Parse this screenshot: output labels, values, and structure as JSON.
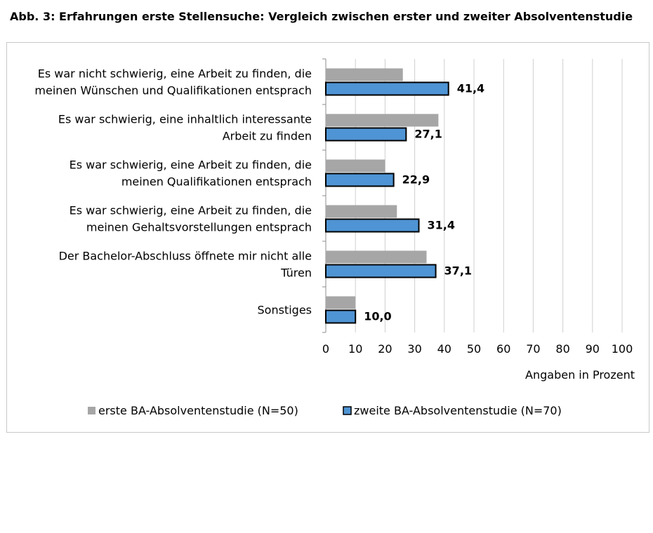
{
  "title": "Abb. 3: Erfahrungen erste Stellensuche: Vergleich zwischen erster und zweiter Absolventenstudie",
  "chart_data": {
    "type": "bar",
    "orientation": "horizontal",
    "categories": [
      [
        "Es war nicht schwierig, eine Arbeit zu finden, die",
        "meinen Wünschen und Qualifikationen entsprach"
      ],
      [
        "Es war schwierig, eine inhaltlich interessante",
        "Arbeit zu finden"
      ],
      [
        "Es war schwierig, eine Arbeit zu finden, die",
        "meinen Qualifikationen entsprach"
      ],
      [
        "Es war schwierig, eine Arbeit zu finden, die",
        "meinen Gehaltsvorstellungen entsprach"
      ],
      [
        "Der Bachelor-Abschluss öffnete mir nicht alle",
        "Türen"
      ],
      [
        "Sonstiges"
      ]
    ],
    "series": [
      {
        "name": "erste BA-Absolventenstudie (N=50)",
        "color": "#a6a6a6",
        "values": [
          26,
          38,
          20,
          24,
          34,
          10
        ],
        "labels": null
      },
      {
        "name": "zweite BA-Absolventenstudie (N=70)",
        "color": "#4f94d4",
        "values": [
          41.4,
          27.1,
          22.9,
          31.4,
          37.1,
          10.0
        ],
        "labels": [
          "41,4",
          "27,1",
          "22,9",
          "31,4",
          "37,1",
          "10,0"
        ]
      }
    ],
    "xlim": [
      0,
      100
    ],
    "xticks": [
      0,
      10,
      20,
      30,
      40,
      50,
      60,
      70,
      80,
      90,
      100
    ],
    "xlabel": "Angaben in Prozent",
    "grid": "vertical",
    "legend": "bottom"
  }
}
